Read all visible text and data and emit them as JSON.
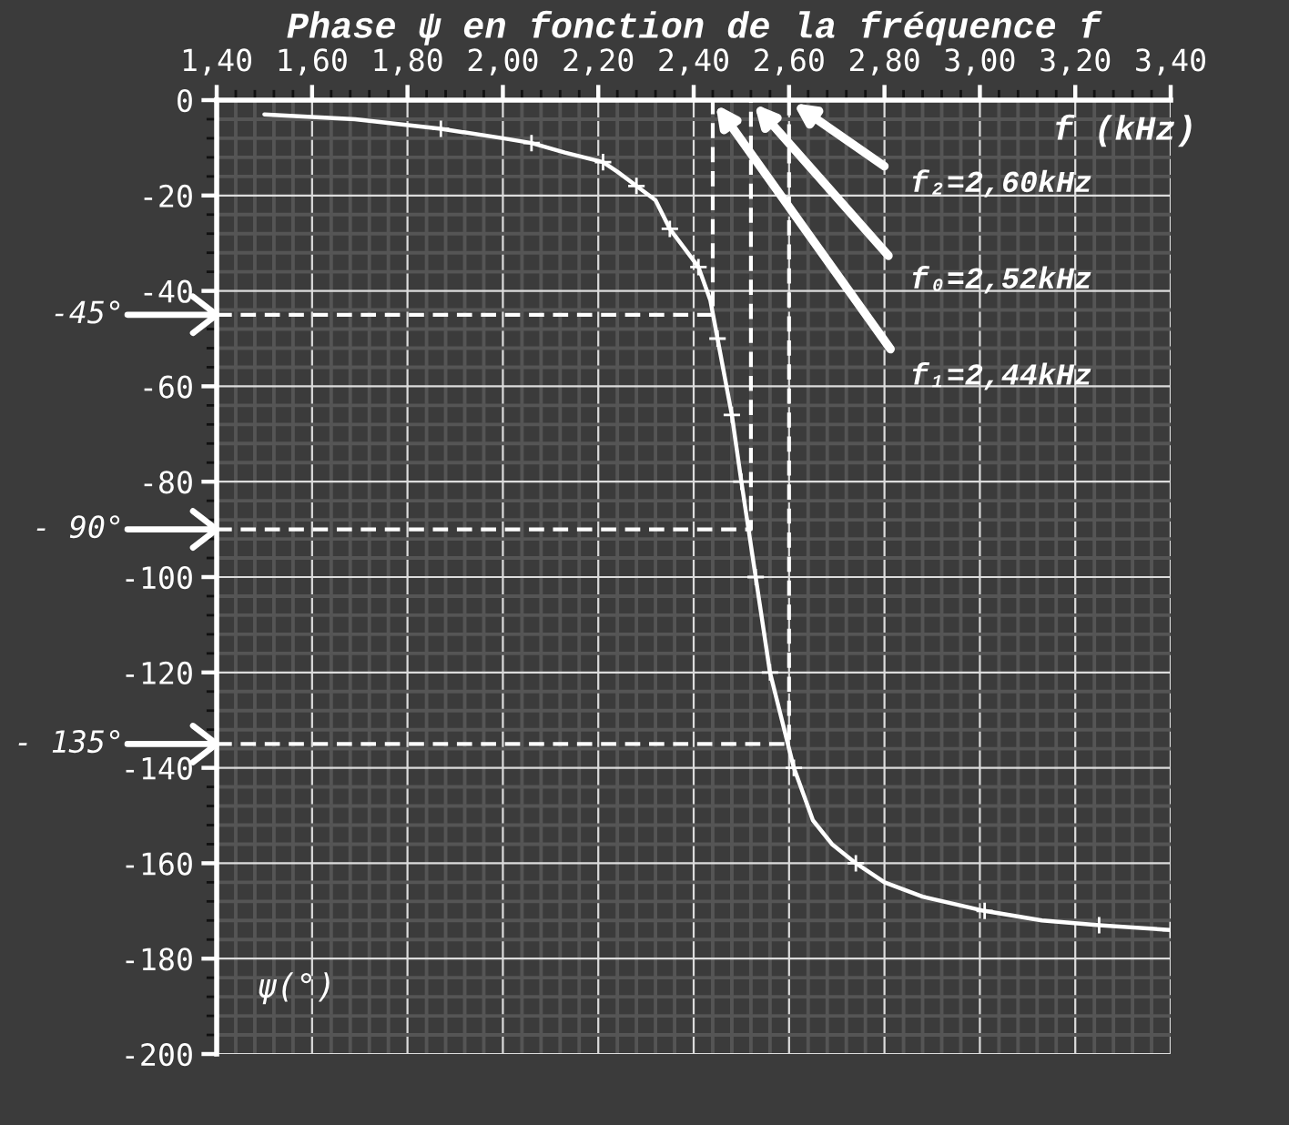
{
  "chart_data": {
    "type": "line",
    "title": "Phase ψ en fonction de la fréquence f",
    "xlabel": "f (kHz)",
    "ylabel": "ψ(°)",
    "xlim": [
      1.4,
      3.4
    ],
    "ylim": [
      -200,
      0
    ],
    "xticks": [
      {
        "value": 1.4,
        "label": "1,40"
      },
      {
        "value": 1.6,
        "label": "1,60"
      },
      {
        "value": 1.8,
        "label": "1,80"
      },
      {
        "value": 2.0,
        "label": "2,00"
      },
      {
        "value": 2.2,
        "label": "2,20"
      },
      {
        "value": 2.4,
        "label": "2,40"
      },
      {
        "value": 2.6,
        "label": "2,60"
      },
      {
        "value": 2.8,
        "label": "2,80"
      },
      {
        "value": 3.0,
        "label": "3,00"
      },
      {
        "value": 3.2,
        "label": "3,20"
      },
      {
        "value": 3.4,
        "label": "3,40"
      },
      {
        "value": 1.44,
        "label": null
      },
      {
        "value": 1.48,
        "label": null
      },
      {
        "value": 1.52,
        "label": null
      },
      {
        "value": 1.56,
        "label": null
      },
      {
        "value": 1.64,
        "label": null
      },
      {
        "value": 1.68,
        "label": null
      },
      {
        "value": 1.72,
        "label": null
      },
      {
        "value": 1.76,
        "label": null
      },
      {
        "value": 1.84,
        "label": null
      },
      {
        "value": 1.88,
        "label": null
      },
      {
        "value": 1.92,
        "label": null
      },
      {
        "value": 1.96,
        "label": null
      },
      {
        "value": 2.04,
        "label": null
      },
      {
        "value": 2.08,
        "label": null
      },
      {
        "value": 2.12,
        "label": null
      },
      {
        "value": 2.16,
        "label": null
      },
      {
        "value": 2.24,
        "label": null
      },
      {
        "value": 2.28,
        "label": null
      },
      {
        "value": 2.32,
        "label": null
      },
      {
        "value": 2.36,
        "label": null
      },
      {
        "value": 2.44,
        "label": null
      },
      {
        "value": 2.48,
        "label": null
      },
      {
        "value": 2.52,
        "label": null
      },
      {
        "value": 2.56,
        "label": null
      },
      {
        "value": 2.64,
        "label": null
      },
      {
        "value": 2.68,
        "label": null
      },
      {
        "value": 2.72,
        "label": null
      },
      {
        "value": 2.76,
        "label": null
      },
      {
        "value": 2.84,
        "label": null
      },
      {
        "value": 2.88,
        "label": null
      },
      {
        "value": 2.92,
        "label": null
      },
      {
        "value": 2.96,
        "label": null
      },
      {
        "value": 3.04,
        "label": null
      },
      {
        "value": 3.08,
        "label": null
      },
      {
        "value": 3.12,
        "label": null
      },
      {
        "value": 3.16,
        "label": null
      },
      {
        "value": 3.24,
        "label": null
      },
      {
        "value": 3.28,
        "label": null
      },
      {
        "value": 3.32,
        "label": null
      },
      {
        "value": 3.36,
        "label": null
      }
    ],
    "yticks": [
      0,
      -20,
      -40,
      -60,
      -80,
      -100,
      -120,
      -140,
      -160,
      -180,
      -200,
      {
        "value": -4,
        "label": null
      },
      {
        "value": -8,
        "label": null
      },
      {
        "value": -12,
        "label": null
      },
      {
        "value": -16,
        "label": null
      },
      {
        "value": -24,
        "label": null
      },
      {
        "value": -28,
        "label": null
      },
      {
        "value": -32,
        "label": null
      },
      {
        "value": -36,
        "label": null
      },
      {
        "value": -44,
        "label": null
      },
      {
        "value": -48,
        "label": null
      },
      {
        "value": -52,
        "label": null
      },
      {
        "value": -56,
        "label": null
      },
      {
        "value": -64,
        "label": null
      },
      {
        "value": -68,
        "label": null
      },
      {
        "value": -72,
        "label": null
      },
      {
        "value": -76,
        "label": null
      },
      {
        "value": -84,
        "label": null
      },
      {
        "value": -88,
        "label": null
      },
      {
        "value": -92,
        "label": null
      },
      {
        "value": -96,
        "label": null
      },
      {
        "value": -104,
        "label": null
      },
      {
        "value": -108,
        "label": null
      },
      {
        "value": -112,
        "label": null
      },
      {
        "value": -116,
        "label": null
      },
      {
        "value": -124,
        "label": null
      },
      {
        "value": -128,
        "label": null
      },
      {
        "value": -132,
        "label": null
      },
      {
        "value": -136,
        "label": null
      },
      {
        "value": -144,
        "label": null
      },
      {
        "value": -148,
        "label": null
      },
      {
        "value": -152,
        "label": null
      },
      {
        "value": -156,
        "label": null
      },
      {
        "value": -164,
        "label": null
      },
      {
        "value": -168,
        "label": null
      },
      {
        "value": -172,
        "label": null
      },
      {
        "value": -176,
        "label": null
      },
      {
        "value": -184,
        "label": null
      },
      {
        "value": -188,
        "label": null
      },
      {
        "value": -192,
        "label": null
      },
      {
        "value": -196,
        "label": null
      }
    ],
    "grid": true,
    "series": [
      {
        "color": "#ffffff",
        "marker": "none",
        "line_style": "solid",
        "x": [
          1.5,
          1.69,
          1.87,
          2.0,
          2.06,
          2.13,
          2.21,
          2.24,
          2.28,
          2.32,
          2.35,
          2.38,
          2.41,
          2.435,
          2.45,
          2.48,
          2.5,
          2.53,
          2.56,
          2.61,
          2.65,
          2.69,
          2.74,
          2.8,
          2.88,
          3.01,
          3.13,
          3.25,
          3.4
        ],
        "values": [
          -3,
          -4,
          -6,
          -8,
          -9,
          -11,
          -13,
          -15,
          -18,
          -21,
          -27,
          -31,
          -35,
          -42,
          -50,
          -66,
          -80,
          -100,
          -120,
          -140,
          -151,
          -156,
          -160,
          -164,
          -167,
          -170,
          -172,
          -173,
          -174
        ]
      },
      {
        "type": "scatter",
        "color": "#ffffff",
        "marker": "cross",
        "x": [
          1.87,
          2.06,
          2.21,
          2.28,
          2.35,
          2.41,
          2.45,
          2.48,
          2.5,
          2.53,
          2.56,
          2.61,
          2.74,
          3.01,
          3.25,
          3.4
        ],
        "values": [
          -6,
          -9,
          -13,
          -18,
          -27,
          -35,
          -50,
          -66,
          -80,
          -100,
          -120,
          -140,
          -160,
          -170,
          -173,
          -174
        ]
      },
      {
        "color": "#ffffff",
        "marker": "none",
        "line_style": "dashed",
        "x": [
          1.4,
          2.44,
          2.44
        ],
        "values": [
          -45,
          -45,
          0
        ]
      },
      {
        "color": "#ffffff",
        "marker": "none",
        "line_style": "dashed",
        "x": [
          1.4,
          2.52,
          2.52
        ],
        "values": [
          -90,
          -90,
          0
        ]
      },
      {
        "color": "#ffffff",
        "marker": "none",
        "line_style": "dashed",
        "x": [
          1.4,
          2.6,
          2.6
        ],
        "values": [
          -135,
          -135,
          0
        ]
      }
    ],
    "annotations": [
      {
        "text": "f₂=2,60kHz",
        "x": 2.6,
        "y": 0
      },
      {
        "text": "f₀=2,52kHz",
        "x": 2.52,
        "y": 0
      },
      {
        "text": "f₁=2,44kHz",
        "x": 2.44,
        "y": 0
      },
      "-45°",
      "- 90°",
      "- 135°"
    ]
  }
}
